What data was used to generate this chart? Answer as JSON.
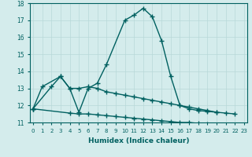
{
  "xlabel": "Humidex (Indice chaleur)",
  "line1_x": [
    0,
    1,
    3,
    4,
    5,
    6,
    7,
    8,
    10,
    11,
    12,
    13,
    14,
    15,
    16,
    17,
    18,
    19,
    20
  ],
  "line1_y": [
    11.8,
    13.1,
    13.7,
    13.0,
    11.6,
    13.0,
    13.3,
    14.4,
    17.0,
    17.3,
    17.7,
    17.2,
    15.8,
    13.7,
    12.0,
    11.8,
    11.7,
    11.65,
    11.6
  ],
  "line2_x": [
    0,
    2,
    3,
    4,
    5,
    6,
    7,
    8,
    9,
    10,
    11,
    12,
    13,
    14,
    15,
    16,
    17,
    18,
    19,
    20,
    21,
    22
  ],
  "line2_y": [
    11.8,
    13.1,
    13.7,
    13.0,
    13.0,
    13.1,
    13.0,
    12.8,
    12.7,
    12.6,
    12.5,
    12.4,
    12.3,
    12.2,
    12.1,
    12.0,
    11.9,
    11.8,
    11.7,
    11.6,
    11.55,
    11.5
  ],
  "line3_x": [
    0,
    4,
    5,
    6,
    7,
    8,
    9,
    10,
    11,
    12,
    13,
    14,
    15,
    16,
    17,
    18,
    19,
    20,
    21,
    22,
    23
  ],
  "line3_y": [
    11.8,
    11.55,
    11.5,
    11.5,
    11.45,
    11.4,
    11.35,
    11.3,
    11.25,
    11.2,
    11.15,
    11.1,
    11.05,
    11.0,
    11.0,
    10.95,
    10.9,
    10.85,
    10.8,
    10.75,
    10.7
  ],
  "ylim": [
    11,
    18
  ],
  "xlim": [
    -0.3,
    23.3
  ],
  "yticks": [
    11,
    12,
    13,
    14,
    15,
    16,
    17,
    18
  ],
  "xticks": [
    0,
    1,
    2,
    3,
    4,
    5,
    6,
    7,
    8,
    9,
    10,
    11,
    12,
    13,
    14,
    15,
    16,
    17,
    18,
    19,
    20,
    21,
    22,
    23
  ],
  "line_color": "#006060",
  "bg_color": "#d4ecec",
  "grid_color": "#b8d8d8",
  "marker": "+",
  "marker_size": 5,
  "linewidth": 1.0
}
